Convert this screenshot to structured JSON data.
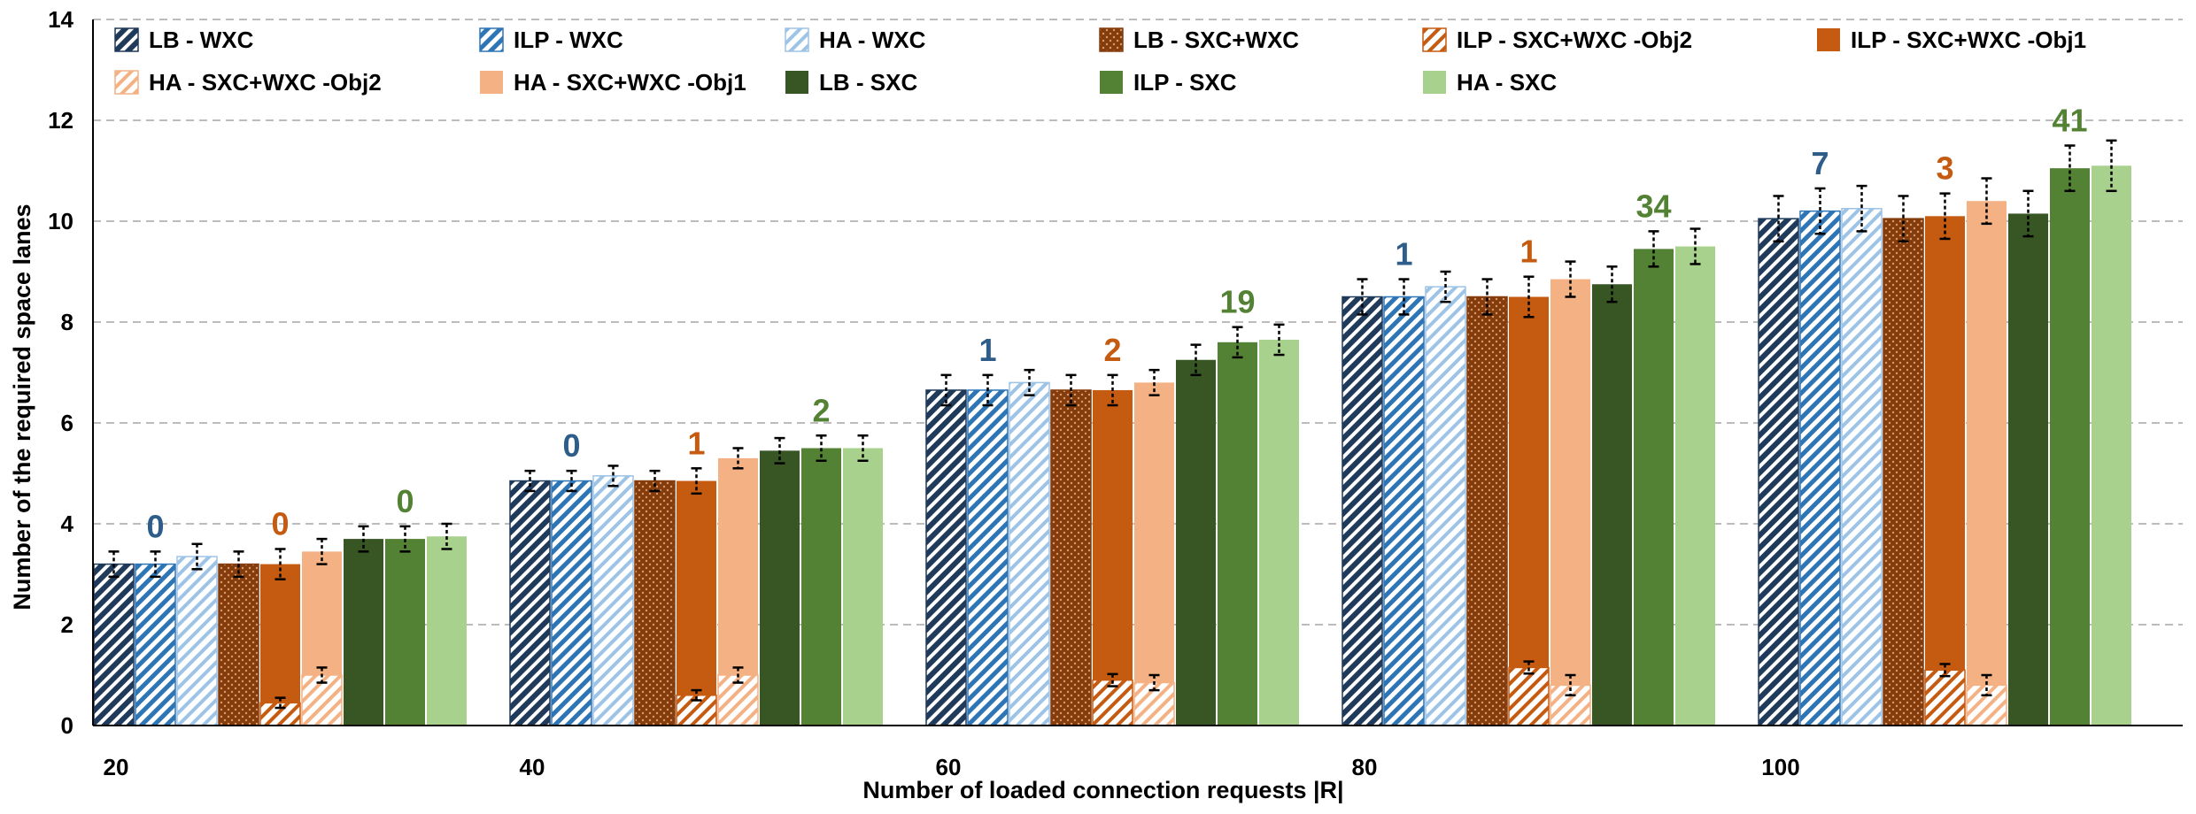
{
  "chart_data": {
    "type": "bar",
    "xlabel": "Number of loaded connection requests |R|",
    "ylabel": "Number of the required space lanes",
    "ylim": [
      0,
      14
    ],
    "yticks": [
      "0",
      "2",
      "4",
      "6",
      "8",
      "10",
      "12",
      "14"
    ],
    "grid": "horizontal-dashed",
    "legend_position": "top",
    "categories": [
      "20",
      "40",
      "60",
      "80",
      "100"
    ],
    "series": [
      {
        "name": "LB - WXC",
        "values": [
          3.2,
          4.85,
          6.65,
          8.5,
          10.05
        ],
        "errors": [
          0.25,
          0.2,
          0.3,
          0.35,
          0.45
        ],
        "color": "#1f3a5a",
        "pattern": "hatch-dark"
      },
      {
        "name": "ILP - WXC",
        "values": [
          3.2,
          4.85,
          6.65,
          8.5,
          10.2
        ],
        "errors": [
          0.25,
          0.2,
          0.3,
          0.35,
          0.45
        ],
        "color": "#2e75b6",
        "pattern": "hatch-mid"
      },
      {
        "name": "HA - WXC",
        "values": [
          3.35,
          4.95,
          6.8,
          8.7,
          10.25
        ],
        "errors": [
          0.25,
          0.2,
          0.25,
          0.3,
          0.45
        ],
        "color": "#9dc3e6",
        "pattern": "hatch-light"
      },
      {
        "name": "LB - SXC+WXC",
        "values": [
          3.2,
          4.85,
          6.65,
          8.5,
          10.05
        ],
        "errors": [
          0.25,
          0.2,
          0.3,
          0.35,
          0.45
        ],
        "color": "#843c0c",
        "pattern": "dots"
      },
      {
        "name": "ILP - SXC+WXC -Obj2",
        "values": [
          0.45,
          0.6,
          0.9,
          1.15,
          1.1
        ],
        "errors": [
          0.1,
          0.1,
          0.12,
          0.12,
          0.12
        ],
        "color": "#c55a11",
        "pattern": "hatch-orange"
      },
      {
        "name": "ILP - SXC+WXC -Obj1",
        "values": [
          3.2,
          4.85,
          6.65,
          8.5,
          10.1
        ],
        "errors": [
          0.3,
          0.25,
          0.3,
          0.4,
          0.45
        ],
        "color": "#c55a11",
        "pattern": "solid"
      },
      {
        "name": "HA - SXC+WXC -Obj2",
        "values": [
          1.0,
          1.0,
          0.85,
          0.8,
          0.8
        ],
        "errors": [
          0.15,
          0.15,
          0.15,
          0.2,
          0.2
        ],
        "color": "#f4b183",
        "pattern": "hatch-peach"
      },
      {
        "name": "HA - SXC+WXC -Obj1",
        "values": [
          3.45,
          5.3,
          6.8,
          8.85,
          10.4
        ],
        "errors": [
          0.25,
          0.2,
          0.25,
          0.35,
          0.45
        ],
        "color": "#f4b183",
        "pattern": "solid"
      },
      {
        "name": "LB - SXC",
        "values": [
          3.7,
          5.45,
          7.25,
          8.75,
          10.15
        ],
        "errors": [
          0.25,
          0.25,
          0.3,
          0.35,
          0.45
        ],
        "color": "#375623",
        "pattern": "solid"
      },
      {
        "name": "ILP - SXC",
        "values": [
          3.7,
          5.5,
          7.6,
          9.45,
          11.05
        ],
        "errors": [
          0.25,
          0.25,
          0.3,
          0.35,
          0.45
        ],
        "color": "#548235",
        "pattern": "solid"
      },
      {
        "name": "HA - SXC",
        "values": [
          3.75,
          5.5,
          7.65,
          9.5,
          11.1
        ],
        "errors": [
          0.25,
          0.25,
          0.3,
          0.35,
          0.5
        ],
        "color": "#a9d18e",
        "pattern": "solid"
      }
    ],
    "annotations": [
      {
        "category": "20",
        "series": "ILP - WXC",
        "text": "0",
        "color": "#2e5d8a"
      },
      {
        "category": "20",
        "series": "ILP - SXC+WXC -Obj1",
        "text": "0",
        "color": "#c55a11"
      },
      {
        "category": "20",
        "series": "ILP - SXC",
        "text": "0",
        "color": "#548235"
      },
      {
        "category": "40",
        "series": "ILP - WXC",
        "text": "0",
        "color": "#2e5d8a"
      },
      {
        "category": "40",
        "series": "ILP - SXC+WXC -Obj1",
        "text": "1",
        "color": "#c55a11"
      },
      {
        "category": "40",
        "series": "ILP - SXC",
        "text": "2",
        "color": "#548235"
      },
      {
        "category": "60",
        "series": "ILP - WXC",
        "text": "1",
        "color": "#2e5d8a"
      },
      {
        "category": "60",
        "series": "ILP - SXC+WXC -Obj1",
        "text": "2",
        "color": "#c55a11"
      },
      {
        "category": "60",
        "series": "ILP - SXC",
        "text": "19",
        "color": "#548235"
      },
      {
        "category": "80",
        "series": "ILP - WXC",
        "text": "1",
        "color": "#2e5d8a"
      },
      {
        "category": "80",
        "series": "ILP - SXC+WXC -Obj1",
        "text": "1",
        "color": "#c55a11"
      },
      {
        "category": "80",
        "series": "ILP - SXC",
        "text": "34",
        "color": "#548235"
      },
      {
        "category": "100",
        "series": "ILP - WXC",
        "text": "7",
        "color": "#2e5d8a"
      },
      {
        "category": "100",
        "series": "ILP - SXC+WXC -Obj1",
        "text": "3",
        "color": "#c55a11"
      },
      {
        "category": "100",
        "series": "ILP - SXC",
        "text": "41",
        "color": "#548235"
      }
    ]
  }
}
